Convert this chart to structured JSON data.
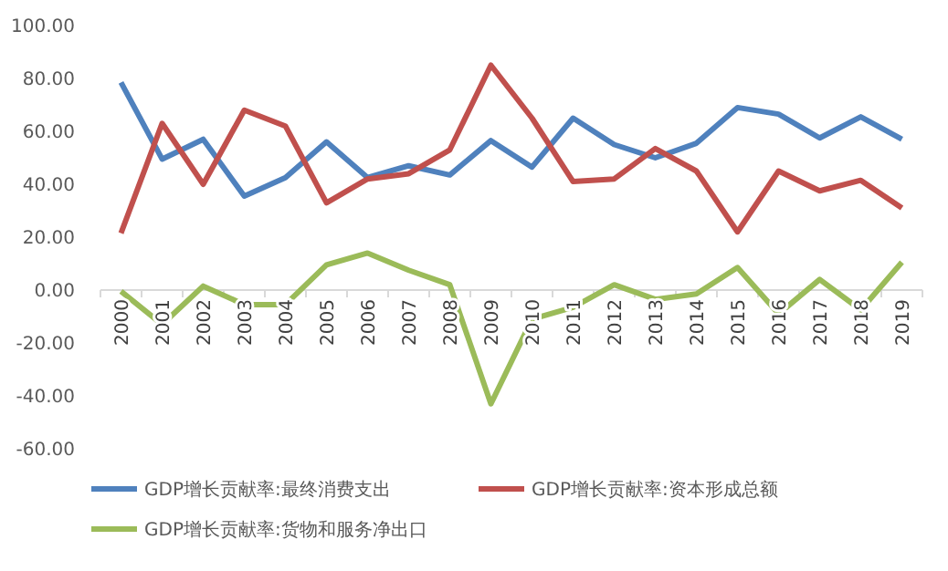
{
  "chart_data": {
    "type": "line",
    "categories": [
      "2000",
      "2001",
      "2002",
      "2003",
      "2004",
      "2005",
      "2006",
      "2007",
      "2008",
      "2009",
      "2010",
      "2011",
      "2012",
      "2013",
      "2014",
      "2015",
      "2016",
      "2017",
      "2018",
      "2019"
    ],
    "series": [
      {
        "name": "GDP增长贡献率:最终消费支出",
        "color": "#4f81bd",
        "values": [
          78.5,
          49.5,
          57,
          35.5,
          42.5,
          56,
          42.5,
          47,
          43.5,
          56.5,
          46.5,
          65,
          55,
          50,
          55.5,
          69,
          66.5,
          57.5,
          65.5,
          57
        ]
      },
      {
        "name": "GDP增长贡献率:资本形成总额",
        "color": "#c0504d",
        "values": [
          21.5,
          63,
          40,
          68,
          62,
          33,
          42,
          44,
          53,
          85,
          65,
          41,
          42,
          53.5,
          45,
          22,
          45,
          37.5,
          41.5,
          31
        ]
      },
      {
        "name": "GDP增长贡献率:货物和服务净出口",
        "color": "#9bbb59",
        "values": [
          -0.5,
          -13,
          1.5,
          -5.5,
          -5.5,
          9.5,
          14,
          7.5,
          2,
          -43,
          -11,
          -6.5,
          2,
          -3.5,
          -1.5,
          8.5,
          -9,
          4,
          -7.5,
          10.5
        ]
      }
    ],
    "ylim": [
      -60,
      100
    ],
    "yticks": [
      {
        "value": -60,
        "label": "-60.00"
      },
      {
        "value": -40,
        "label": "-40.00"
      },
      {
        "value": -20,
        "label": "-20.00"
      },
      {
        "value": 0,
        "label": "0.00"
      },
      {
        "value": 20,
        "label": "20.00"
      },
      {
        "value": 40,
        "label": "40.00"
      },
      {
        "value": 60,
        "label": "60.00"
      },
      {
        "value": 80,
        "label": "80.00"
      },
      {
        "value": 100,
        "label": "100.00"
      }
    ],
    "grid": false,
    "legend": "bottom",
    "marker": "none",
    "line_style": "solid"
  }
}
